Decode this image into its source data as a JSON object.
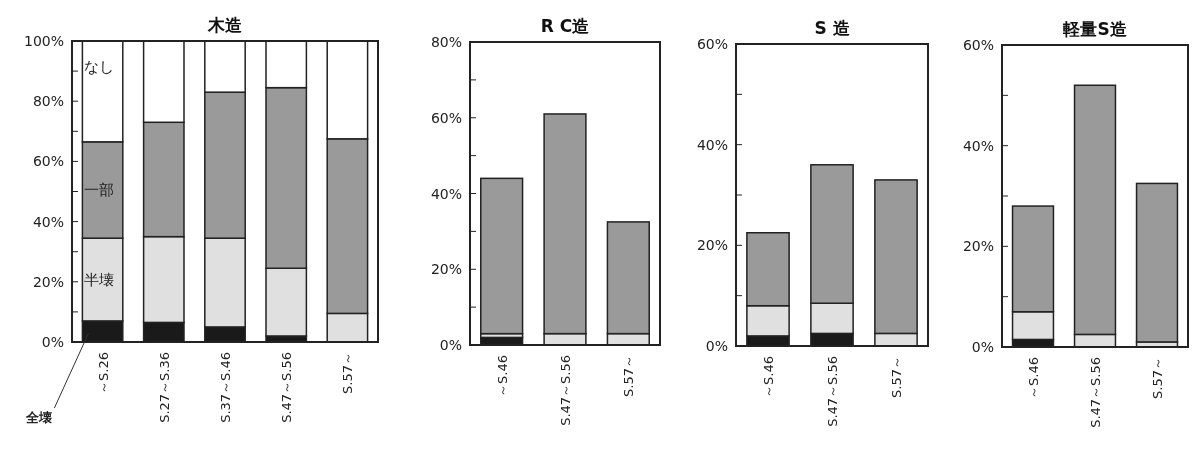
{
  "chart_data": [
    {
      "type": "bar",
      "title": "木造",
      "stacked": true,
      "categories": [
        "～S.26",
        "S.27～S.36",
        "S.37～S.46",
        "S.47～S.56",
        "S.57～"
      ],
      "ylim": [
        0,
        100
      ],
      "yticks": [
        {
          "value": 0,
          "label": "0%"
        },
        {
          "value": 10,
          "label": null
        },
        {
          "value": 20,
          "label": "20%"
        },
        {
          "value": 30,
          "label": null
        },
        {
          "value": 40,
          "label": "40%"
        },
        {
          "value": 50,
          "label": null
        },
        {
          "value": 60,
          "label": "60%"
        },
        {
          "value": 70,
          "label": null
        },
        {
          "value": 80,
          "label": "80%"
        },
        {
          "value": 90,
          "label": null
        },
        {
          "value": 100,
          "label": "100%"
        }
      ],
      "series": [
        {
          "name": "全壊",
          "color": "#1a1a1a",
          "values": [
            7,
            6.5,
            5,
            2,
            null
          ]
        },
        {
          "name": "半壊",
          "color": "#e0e0e0",
          "values": [
            27.5,
            28.5,
            29.5,
            22.5,
            9.5
          ]
        },
        {
          "name": "一部",
          "color": "#9a9a9a",
          "values": [
            32,
            38,
            48.5,
            60,
            58
          ]
        },
        {
          "name": "なし",
          "color": "#ffffff",
          "values": [
            33.5,
            27,
            17,
            15.5,
            32.5
          ]
        }
      ]
    },
    {
      "type": "bar",
      "title": "R C造",
      "stacked": true,
      "categories": [
        "～S.46",
        "S.47～S.56",
        "S.57～"
      ],
      "ylim": [
        0,
        80
      ],
      "yticks": [
        {
          "value": 0,
          "label": "0%"
        },
        {
          "value": 10,
          "label": null
        },
        {
          "value": 20,
          "label": "20%"
        },
        {
          "value": 30,
          "label": null
        },
        {
          "value": 40,
          "label": "40%"
        },
        {
          "value": 50,
          "label": null
        },
        {
          "value": 60,
          "label": "60%"
        },
        {
          "value": 70,
          "label": null
        },
        {
          "value": 80,
          "label": "80%"
        }
      ],
      "series": [
        {
          "color": "#1a1a1a",
          "values": [
            2,
            null,
            null
          ]
        },
        {
          "color": "#e0e0e0",
          "values": [
            1,
            3,
            3
          ]
        },
        {
          "color": "#9a9a9a",
          "values": [
            41,
            58,
            29.5
          ]
        }
      ]
    },
    {
      "type": "bar",
      "title": "S 造",
      "stacked": true,
      "categories": [
        "～S.46",
        "S.47～S.56",
        "S.57～"
      ],
      "ylim": [
        0,
        60
      ],
      "yticks": [
        {
          "value": 0,
          "label": "0%"
        },
        {
          "value": 10,
          "label": null
        },
        {
          "value": 20,
          "label": "20%"
        },
        {
          "value": 30,
          "label": null
        },
        {
          "value": 40,
          "label": "40%"
        },
        {
          "value": 50,
          "label": null
        },
        {
          "value": 60,
          "label": "60%"
        }
      ],
      "series": [
        {
          "color": "#1a1a1a",
          "values": [
            2,
            2.5,
            null
          ]
        },
        {
          "color": "#e0e0e0",
          "values": [
            6,
            6,
            2.5
          ]
        },
        {
          "color": "#9a9a9a",
          "values": [
            14.5,
            27.5,
            30.5
          ]
        }
      ]
    },
    {
      "type": "bar",
      "title": "軽量S造",
      "stacked": true,
      "categories": [
        "～S.46",
        "S.47～S.56",
        "S.57～"
      ],
      "ylim": [
        0,
        60
      ],
      "yticks": [
        {
          "value": 0,
          "label": "0%"
        },
        {
          "value": 10,
          "label": null
        },
        {
          "value": 20,
          "label": "20%"
        },
        {
          "value": 30,
          "label": null
        },
        {
          "value": 40,
          "label": "40%"
        },
        {
          "value": 50,
          "label": null
        },
        {
          "value": 60,
          "label": "60%"
        }
      ],
      "series": [
        {
          "color": "#1a1a1a",
          "values": [
            1.5,
            null,
            null
          ]
        },
        {
          "color": "#e0e0e0",
          "values": [
            5.5,
            2.5,
            1
          ]
        },
        {
          "color": "#9a9a9a",
          "values": [
            21,
            49.5,
            31.5
          ]
        }
      ]
    }
  ]
}
